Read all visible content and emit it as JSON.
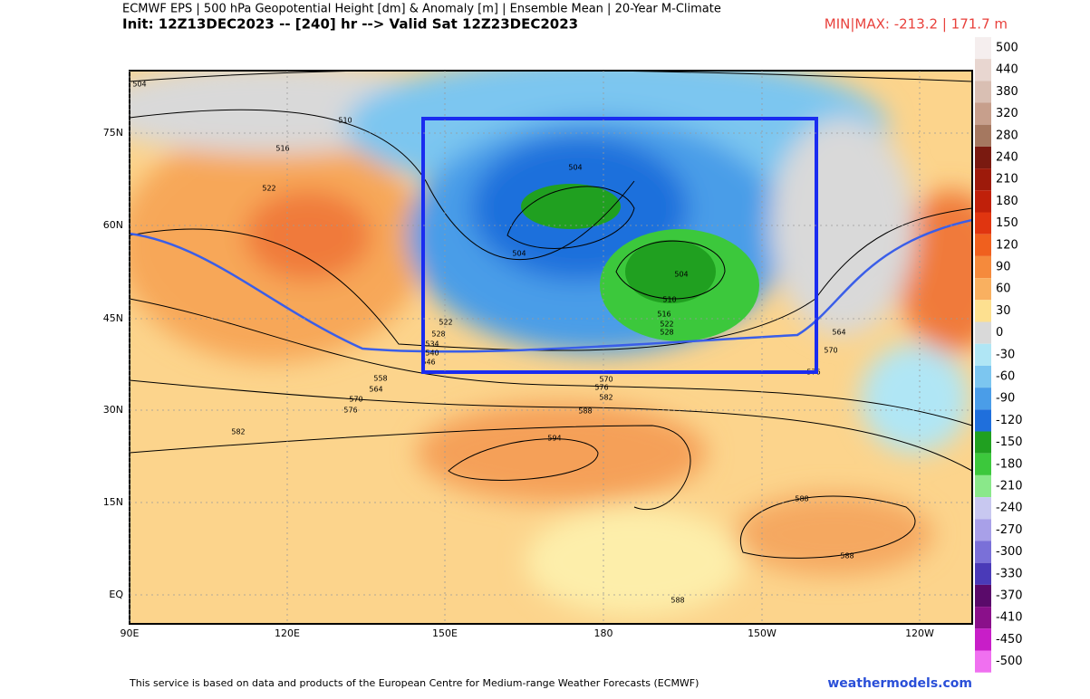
{
  "header": {
    "line1": "ECMWF EPS | 500 hPa Geopotential Height [dm] & Anomaly [m] | Ensemble Mean | 20-Year M-Climate",
    "line2": "Init: 12Z13DEC2023 -- [240] hr --> Valid Sat 12Z23DEC2023",
    "minmax": "MIN|MAX: -213.2 | 171.7 m"
  },
  "map": {
    "lon_labels": [
      "90E",
      "120E",
      "150E",
      "180",
      "150W",
      "120W"
    ],
    "lat_labels": [
      "75N",
      "60N",
      "45N",
      "30N",
      "15N",
      "EQ"
    ],
    "contour_labels": [
      "504",
      "510",
      "516",
      "522",
      "504",
      "504",
      "504",
      "510",
      "516",
      "522",
      "528",
      "534",
      "540",
      "546",
      "522",
      "528",
      "564",
      "570",
      "576",
      "570",
      "576",
      "582",
      "588",
      "594",
      "582",
      "558",
      "564",
      "570",
      "576",
      "588",
      "588",
      "588"
    ]
  },
  "colorbar": {
    "levels": [
      500,
      440,
      380,
      320,
      280,
      240,
      210,
      180,
      150,
      120,
      90,
      60,
      30,
      0,
      -30,
      -60,
      -90,
      -120,
      -150,
      -180,
      -210,
      -240,
      -270,
      -300,
      -330,
      -370,
      -410,
      -450,
      -500
    ],
    "colors": [
      "#f5eeee",
      "#e8d6d0",
      "#d9bfb3",
      "#c79f8c",
      "#a57860",
      "#7a1a10",
      "#9d1a0a",
      "#c0200a",
      "#e03510",
      "#f0601e",
      "#f58a3c",
      "#f9b060",
      "#fde090",
      "#d9d9d9",
      "#b0e6f5",
      "#7cc6f0",
      "#4a9de8",
      "#1f6fdc",
      "#20a020",
      "#3cc83c",
      "#8ae88a",
      "#c8c8f0",
      "#a8a0e8",
      "#7a70d8",
      "#4a3ab8",
      "#5a0a6a",
      "#8a108a",
      "#c81ec8",
      "#f070f0"
    ]
  },
  "footer": {
    "credit": "This service is based on data and products of the European Centre for Medium-range Weather Forecasts (ECMWF)",
    "site": "weathermodels.com"
  }
}
